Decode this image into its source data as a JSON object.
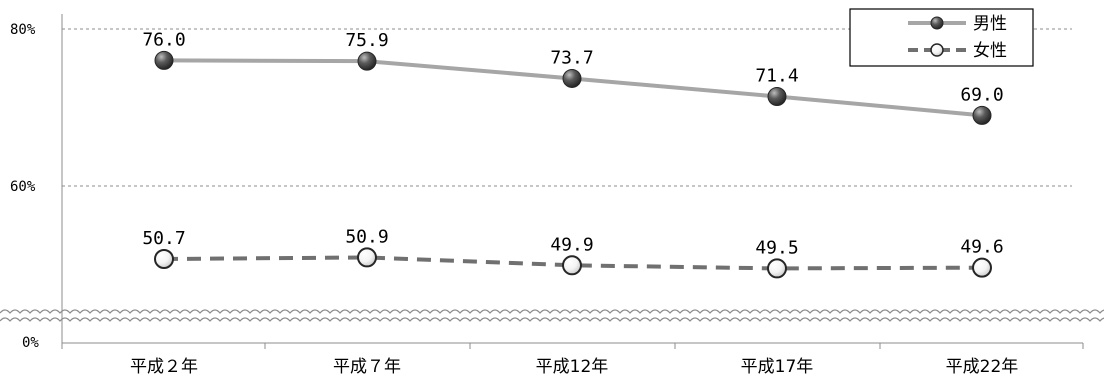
{
  "chart_data": {
    "type": "line",
    "categories": [
      "平成２年",
      "平成７年",
      "平成12年",
      "平成17年",
      "平成22年"
    ],
    "y_ticks": [
      "80%",
      "60%",
      "0%"
    ],
    "axis_break": true,
    "grid": "dashed",
    "legend_position": "top-right",
    "series": [
      {
        "name": "男性",
        "values": [
          76.0,
          75.9,
          73.7,
          71.4,
          69.0
        ],
        "labels": [
          "76.0",
          "75.9",
          "73.7",
          "71.4",
          "69.0"
        ],
        "line_style": "solid",
        "marker": "dark",
        "color": "#a6a6a6"
      },
      {
        "name": "女性",
        "values": [
          50.7,
          50.9,
          49.9,
          49.5,
          49.6
        ],
        "labels": [
          "50.7",
          "50.9",
          "49.9",
          "49.5",
          "49.6"
        ],
        "line_style": "dashed",
        "marker": "light",
        "color": "#707070"
      }
    ]
  }
}
